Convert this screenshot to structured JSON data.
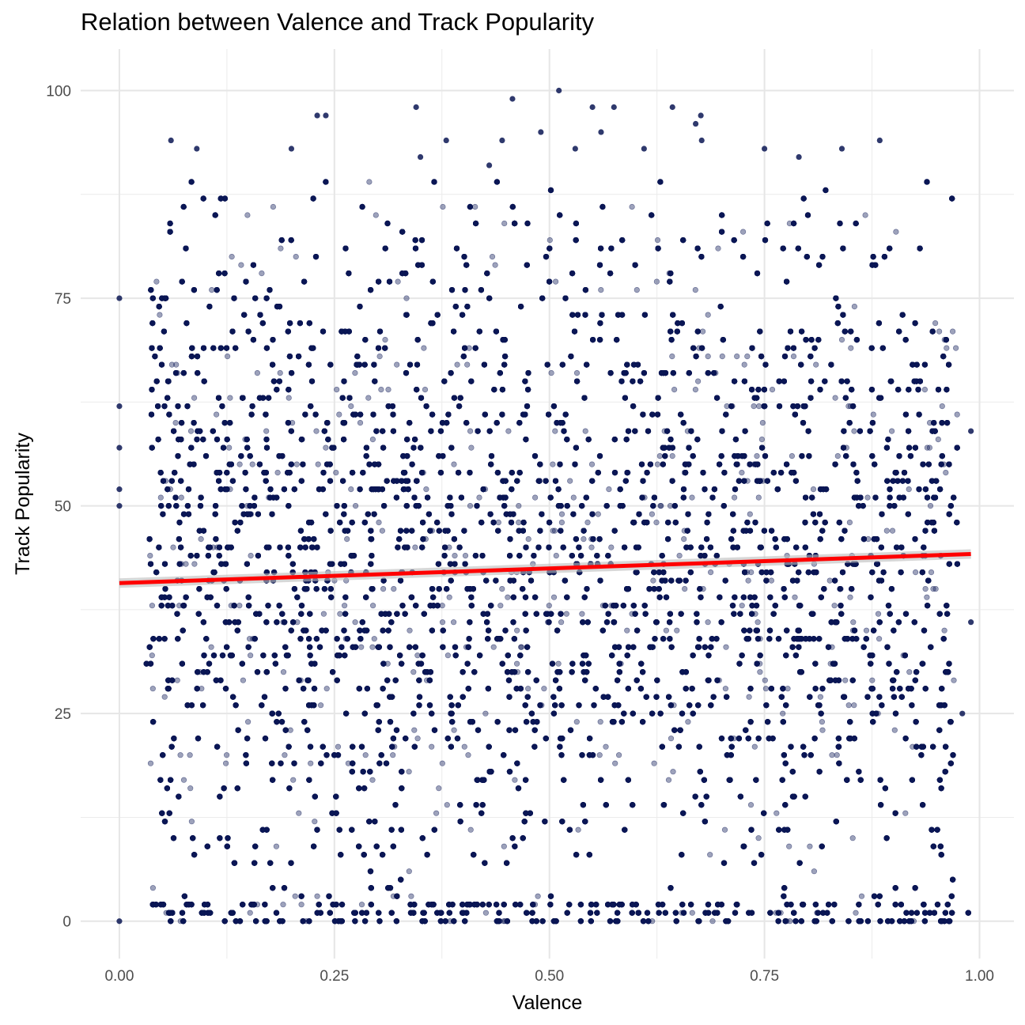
{
  "chart_data": {
    "type": "scatter",
    "title": "Relation between Valence and Track Popularity",
    "xlabel": "Valence",
    "ylabel": "Track Popularity",
    "xlim": [
      -0.045,
      1.04
    ],
    "ylim": [
      -4.5,
      105
    ],
    "x_ticks": [
      "0.00",
      "0.25",
      "0.50",
      "0.75",
      "1.00"
    ],
    "y_ticks": [
      "0",
      "25",
      "50",
      "75",
      "100"
    ],
    "x_tick_values": [
      0,
      0.25,
      0.5,
      0.75,
      1.0
    ],
    "y_tick_values": [
      0,
      25,
      50,
      75,
      100
    ],
    "grid": true,
    "point_color": "#0b1654",
    "point_opacity": 0.4,
    "point_count_estimate": 28000,
    "x_range_of_points": [
      0.0,
      0.99
    ],
    "y_range_of_points": [
      0,
      100
    ],
    "highlighted_points": [
      {
        "x": 0.0,
        "y": 75
      },
      {
        "x": 0.0,
        "y": 62
      },
      {
        "x": 0.0,
        "y": 57
      },
      {
        "x": 0.0,
        "y": 52
      },
      {
        "x": 0.0,
        "y": 50
      },
      {
        "x": 0.0,
        "y": 0
      },
      {
        "x": 0.06,
        "y": 94
      },
      {
        "x": 0.09,
        "y": 93
      },
      {
        "x": 0.2,
        "y": 93
      },
      {
        "x": 0.24,
        "y": 97
      },
      {
        "x": 0.23,
        "y": 97
      },
      {
        "x": 0.345,
        "y": 98
      },
      {
        "x": 0.35,
        "y": 92
      },
      {
        "x": 0.38,
        "y": 94
      },
      {
        "x": 0.43,
        "y": 91
      },
      {
        "x": 0.445,
        "y": 94
      },
      {
        "x": 0.457,
        "y": 99
      },
      {
        "x": 0.49,
        "y": 95
      },
      {
        "x": 0.511,
        "y": 100
      },
      {
        "x": 0.53,
        "y": 93
      },
      {
        "x": 0.55,
        "y": 98
      },
      {
        "x": 0.56,
        "y": 95
      },
      {
        "x": 0.575,
        "y": 98
      },
      {
        "x": 0.61,
        "y": 93
      },
      {
        "x": 0.643,
        "y": 98
      },
      {
        "x": 0.67,
        "y": 96
      },
      {
        "x": 0.676,
        "y": 97
      },
      {
        "x": 0.677,
        "y": 94
      },
      {
        "x": 0.75,
        "y": 93
      },
      {
        "x": 0.79,
        "y": 92
      },
      {
        "x": 0.84,
        "y": 93
      },
      {
        "x": 0.884,
        "y": 94
      },
      {
        "x": 0.99,
        "y": 59
      },
      {
        "x": 0.99,
        "y": 36
      },
      {
        "x": 0.98,
        "y": 25
      }
    ],
    "trend_line": {
      "type": "linear",
      "color": "#ff0000",
      "x_start": 0.0,
      "y_start": 40.7,
      "x_end": 0.99,
      "y_end": 44.2
    }
  }
}
